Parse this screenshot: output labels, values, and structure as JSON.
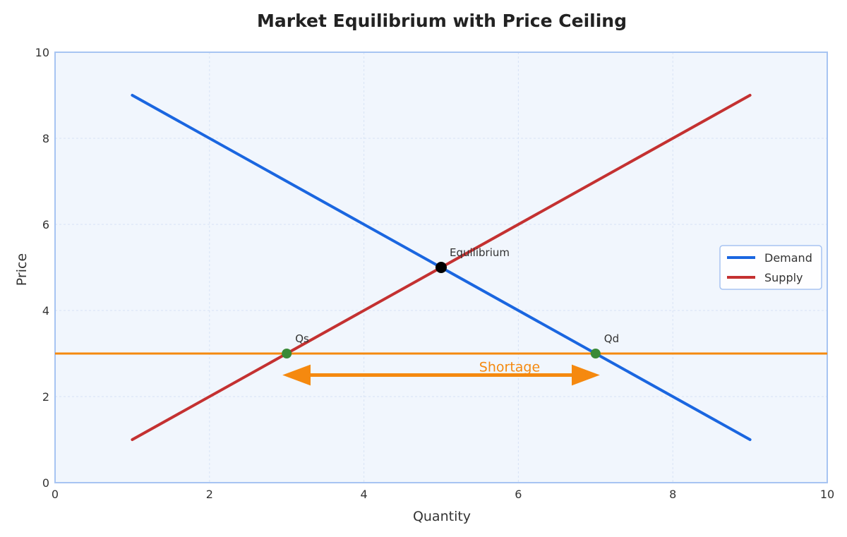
{
  "chart_data": {
    "type": "line",
    "title": "Market Equilibrium with Price Ceiling",
    "xlabel": "Quantity",
    "ylabel": "Price",
    "xlim": [
      0,
      10
    ],
    "ylim": [
      0,
      10
    ],
    "xticks": [
      0,
      2,
      4,
      6,
      8,
      10
    ],
    "yticks": [
      0,
      2,
      4,
      6,
      8,
      10
    ],
    "grid": true,
    "legend_position": "center-right",
    "background_color": "#f1f6fd",
    "frame_color": "#a7c4f2",
    "series": [
      {
        "name": "Demand",
        "color": "#1a66e0",
        "x": [
          1,
          9
        ],
        "y": [
          9,
          1
        ]
      },
      {
        "name": "Supply",
        "color": "#c43131",
        "x": [
          1,
          9
        ],
        "y": [
          1,
          9
        ]
      }
    ],
    "price_ceiling": {
      "y": 3,
      "color": "#f5890f"
    },
    "points": [
      {
        "label": "Equilibrium",
        "x": 5,
        "y": 5,
        "color": "#000000"
      },
      {
        "label": "Qs",
        "x": 3,
        "y": 3,
        "color": "#3a8a36"
      },
      {
        "label": "Qd",
        "x": 7,
        "y": 3,
        "color": "#3a8a36"
      }
    ],
    "shortage": {
      "label": "Shortage",
      "x_start": 3,
      "x_end": 7,
      "y": 2.5,
      "color": "#f5890f"
    }
  }
}
